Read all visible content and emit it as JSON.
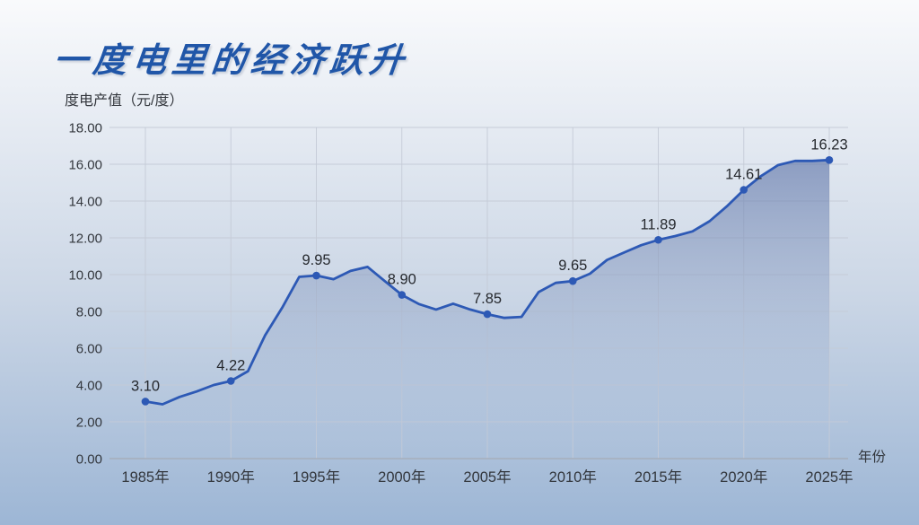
{
  "title": "一度电里的经济跃升",
  "unit_label": "度电产值（元/度）",
  "colors": {
    "title_text": "#2056a8",
    "line": "#2d59b5",
    "marker": "#2d59b5",
    "grid": "#c5cbd7",
    "axis_line": "#a6adb9",
    "axis_text": "#33373d",
    "point_label_text": "#26292e",
    "bg_top": "#f9fafc",
    "bg_mid": "#ccd7e6",
    "bg_bottom": "#9db6d5",
    "area_fill_stops": [
      [
        "0%",
        "rgba(88,110,164,0.72)"
      ],
      [
        "35%",
        "rgba(110,132,178,0.45)"
      ],
      [
        "100%",
        "rgba(174,193,220,0.05)"
      ]
    ]
  },
  "chart_data": {
    "type": "area",
    "title": "一度电里的经济跃升",
    "ylabel": "度电产值（元/度）",
    "xlabel": "年份",
    "grid": true,
    "ylim": [
      0,
      18
    ],
    "xlim": [
      1985,
      2025
    ],
    "x": [
      1985,
      1986,
      1987,
      1988,
      1989,
      1990,
      1991,
      1992,
      1993,
      1994,
      1995,
      1996,
      1997,
      1998,
      1999,
      2000,
      2001,
      2002,
      2003,
      2004,
      2005,
      2006,
      2007,
      2008,
      2009,
      2010,
      2011,
      2012,
      2013,
      2014,
      2015,
      2016,
      2017,
      2018,
      2019,
      2020,
      2021,
      2022,
      2023,
      2024,
      2025
    ],
    "values": [
      3.1,
      2.95,
      3.35,
      3.65,
      4.0,
      4.22,
      4.75,
      6.7,
      8.2,
      9.88,
      9.95,
      9.75,
      10.2,
      10.42,
      9.65,
      8.9,
      8.4,
      8.1,
      8.42,
      8.1,
      7.85,
      7.65,
      7.7,
      9.05,
      9.55,
      9.65,
      10.05,
      10.8,
      11.2,
      11.6,
      11.89,
      12.1,
      12.35,
      12.9,
      13.7,
      14.61,
      15.35,
      15.95,
      16.18,
      16.18,
      16.23
    ],
    "labeled_points": [
      {
        "x": 1985,
        "value": 3.1,
        "label": "3.10"
      },
      {
        "x": 1990,
        "value": 4.22,
        "label": "4.22"
      },
      {
        "x": 1995,
        "value": 9.95,
        "label": "9.95"
      },
      {
        "x": 2000,
        "value": 8.9,
        "label": "8.90"
      },
      {
        "x": 2005,
        "value": 7.85,
        "label": "7.85"
      },
      {
        "x": 2010,
        "value": 9.65,
        "label": "9.65"
      },
      {
        "x": 2015,
        "value": 11.89,
        "label": "11.89"
      },
      {
        "x": 2020,
        "value": 14.61,
        "label": "14.61"
      },
      {
        "x": 2025,
        "value": 16.23,
        "label": "16.23"
      }
    ],
    "x_ticks": [
      1985,
      1990,
      1995,
      2000,
      2005,
      2010,
      2015,
      2020,
      2025
    ],
    "x_tick_labels": [
      "1985年",
      "1990年",
      "1995年",
      "2000年",
      "2005年",
      "2010年",
      "2015年",
      "2020年",
      "2025年"
    ],
    "y_ticks": [
      0,
      2,
      4,
      6,
      8,
      10,
      12,
      14,
      16,
      18
    ],
    "y_tick_labels": [
      "0.00",
      "2.00",
      "4.00",
      "6.00",
      "8.00",
      "10.00",
      "12.00",
      "14.00",
      "16.00",
      "18.00"
    ]
  }
}
